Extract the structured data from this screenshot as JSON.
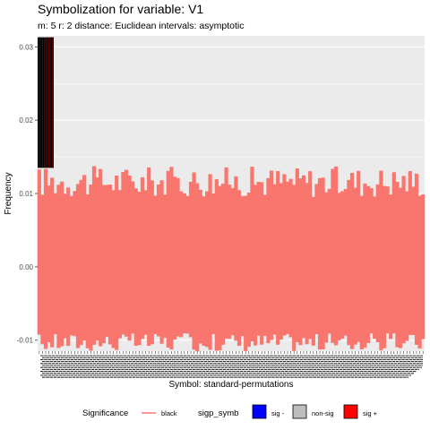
{
  "chart_data": {
    "type": "line",
    "title": "Symbolization for variable: V1",
    "subtitle": "m: 5  r:  2  distance:  Euclidean  intervals:  asymptotic",
    "xlabel": "Symbol: standard-permutations",
    "ylabel": "Frequency",
    "ylim": [
      -0.0115,
      0.0315
    ],
    "y_ticks": [
      -0.01,
      0.0,
      0.01,
      0.02,
      0.03
    ],
    "y_tick_labels": [
      "-0.01",
      "0.00",
      "0.01",
      "0.02",
      "0.03"
    ],
    "n_symbols": 120,
    "observed_frequency": 0.00833,
    "interval_upper_range": [
      0.0095,
      0.0137
    ],
    "interval_lower_range": [
      -0.0115,
      -0.009
    ],
    "highlighted_symbols": [
      {
        "index": 1,
        "upper": 0.0313,
        "lower": 0.0135
      },
      {
        "index": 2,
        "upper": 0.0313,
        "lower": 0.0135
      },
      {
        "index": 3,
        "upper": 0.0313,
        "lower": 0.0135
      },
      {
        "index": 4,
        "upper": 0.0313,
        "lower": 0.0135
      },
      {
        "index": 5,
        "upper": 0.0313,
        "lower": 0.0135
      }
    ],
    "grid": true,
    "legend_position": "bottom",
    "colors": {
      "panel_background": "#ebebeb",
      "interval": "#f8766d",
      "black": "#000000",
      "sig_minus": "#0000ff",
      "non_sig": "#bebebe",
      "sig_plus": "#ff0000"
    }
  },
  "legend": {
    "significance_title": "Significance",
    "significance_item": "black",
    "sigp_title": "sigp_symb",
    "items": [
      {
        "label": "sig -",
        "color": "#0000ff"
      },
      {
        "label": "non-sig",
        "color": "#bebebe"
      },
      {
        "label": "sig +",
        "color": "#ff0000"
      }
    ]
  }
}
